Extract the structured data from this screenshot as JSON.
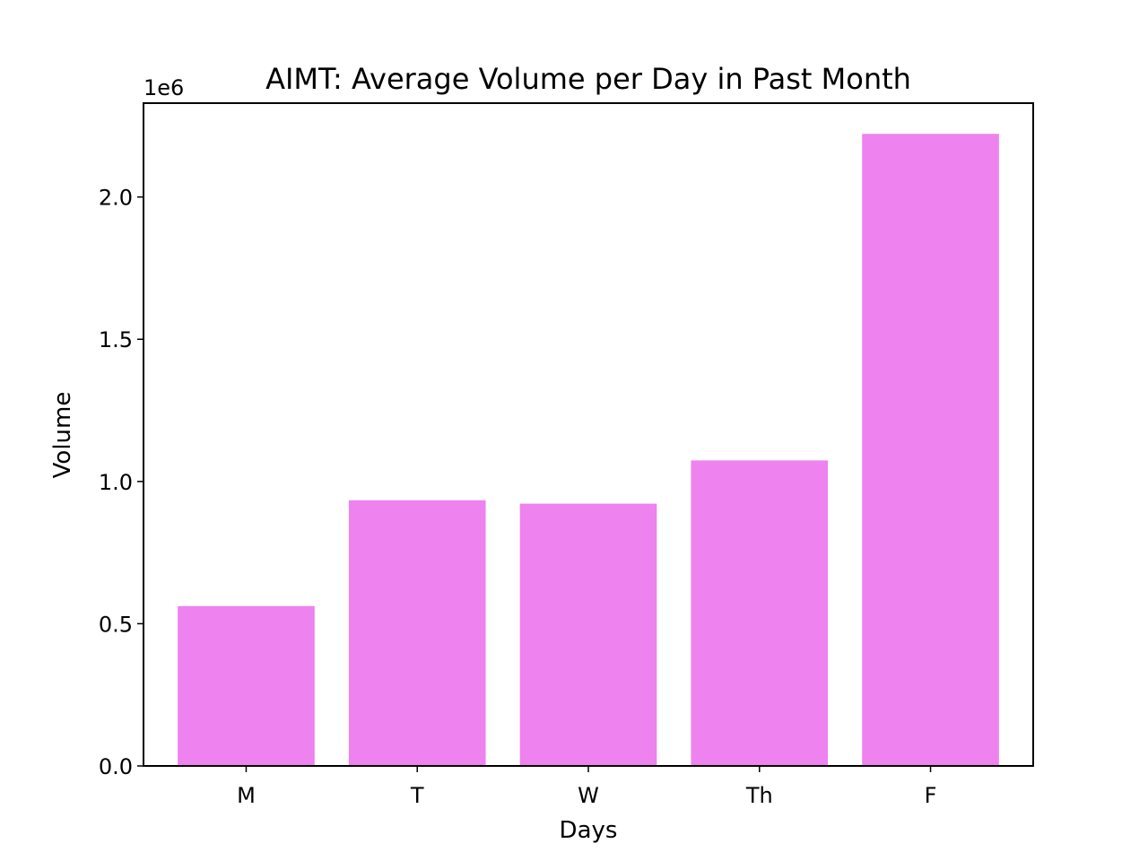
{
  "colors": {
    "bar": "#ee82ee",
    "axis": "#000000",
    "background": "#ffffff"
  },
  "chart_data": {
    "type": "bar",
    "title": "AIMT: Average Volume per Day in Past Month",
    "xlabel": "Days",
    "ylabel": "Volume",
    "y_offset_label": "1e6",
    "categories": [
      "M",
      "T",
      "W",
      "Th",
      "F"
    ],
    "values": [
      562000,
      934000,
      922000,
      1074000,
      2222000
    ],
    "ylim": [
      0,
      2330000
    ],
    "yticks": [
      0,
      500000,
      1000000,
      1500000,
      2000000
    ],
    "ytick_labels": [
      "0.0",
      "0.5",
      "1.0",
      "1.5",
      "2.0"
    ],
    "grid": false,
    "legend": "none"
  }
}
